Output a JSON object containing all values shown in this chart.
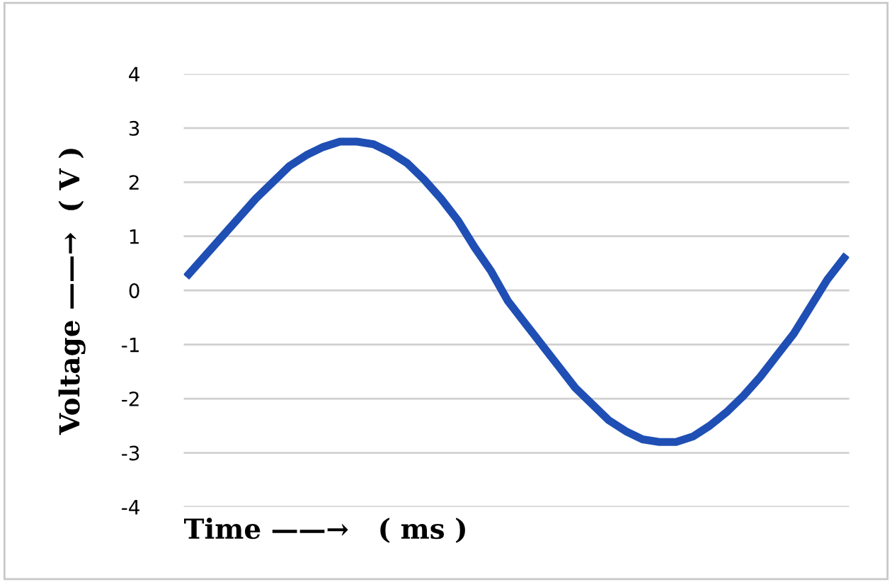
{
  "chart_data": {
    "type": "line",
    "xlabel": "Time ——→   ( ms )",
    "ylabel": "Voltage ——→  ( V )",
    "categories": [
      null,
      null,
      null,
      null,
      null,
      null,
      null,
      null,
      null,
      null,
      null,
      null,
      null,
      null,
      null,
      null,
      null,
      null,
      null,
      null,
      null,
      null,
      null,
      null,
      null,
      null,
      null,
      null,
      null,
      null,
      null,
      null,
      null,
      null,
      null,
      null,
      null,
      null,
      null,
      null
    ],
    "series": [
      {
        "color": "#1f4fb4",
        "values": [
          0.3,
          0.65,
          1.0,
          1.35,
          1.7,
          2.0,
          2.3,
          2.5,
          2.65,
          2.75,
          2.75,
          2.7,
          2.55,
          2.35,
          2.05,
          1.7,
          1.3,
          0.8,
          0.35,
          -0.2,
          -0.6,
          -1.0,
          -1.4,
          -1.8,
          -2.1,
          -2.4,
          -2.6,
          -2.75,
          -2.8,
          -2.8,
          -2.7,
          -2.5,
          -2.25,
          -1.95,
          -1.6,
          -1.2,
          -0.8,
          -0.3,
          0.2,
          0.6
        ]
      }
    ],
    "ylim": [
      -4,
      4
    ],
    "yticks": [
      -4,
      -3,
      -2,
      -1,
      0,
      1,
      2,
      3,
      4
    ],
    "grid": "y",
    "marker": "none",
    "line_style": "solid"
  }
}
